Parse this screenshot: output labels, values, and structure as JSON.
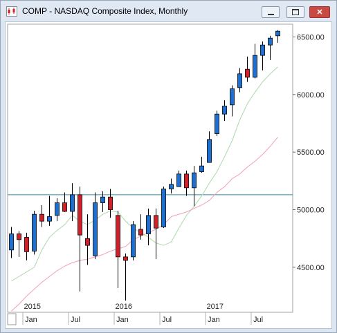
{
  "window": {
    "title": "COMP - NASDAQ Composite Index, Monthly",
    "minimize_icon": "minimize-icon",
    "maximize_icon": "maximize-icon",
    "close_icon": "close-icon",
    "app_icon": "chart-icon"
  },
  "colors": {
    "up": "#1f6fd1",
    "down": "#d0202a",
    "fast_ma": "#b5dbb3",
    "slow_ma": "#f2a6bd",
    "hline": "#2a8c96"
  },
  "chart_data": {
    "type": "candlestick",
    "ylim": [
      4150,
      6650
    ],
    "yticks": [
      4500,
      5000,
      5500,
      6000,
      6500
    ],
    "ytick_labels": [
      "4500.00",
      "5000.00",
      "5500.00",
      "6000.00",
      "6500.00"
    ],
    "year_labels": [
      {
        "label": "2015",
        "after_month": 0
      },
      {
        "label": "2016",
        "after_month": 12
      },
      {
        "label": "2017",
        "after_month": 24
      }
    ],
    "month_labels": [
      {
        "label": "Jan",
        "month": 0
      },
      {
        "label": "Jul",
        "month": 6
      },
      {
        "label": "Jan",
        "month": 12
      },
      {
        "label": "Jul",
        "month": 18
      },
      {
        "label": "Jan",
        "month": 24
      },
      {
        "label": "Jul",
        "month": 30
      }
    ],
    "horizontal_line": 5130,
    "candles": [
      {
        "date": "2014-11",
        "open": 4650,
        "high": 4850,
        "low": 4580,
        "close": 4790
      },
      {
        "date": "2014-12",
        "open": 4790,
        "high": 4815,
        "low": 4590,
        "close": 4740
      },
      {
        "date": "2015-01",
        "open": 4760,
        "high": 4800,
        "low": 4560,
        "close": 4635
      },
      {
        "date": "2015-02",
        "open": 4640,
        "high": 4990,
        "low": 4610,
        "close": 4960
      },
      {
        "date": "2015-03",
        "open": 4960,
        "high": 5040,
        "low": 4850,
        "close": 4900
      },
      {
        "date": "2015-04",
        "open": 4900,
        "high": 5120,
        "low": 4860,
        "close": 4940
      },
      {
        "date": "2015-05",
        "open": 4950,
        "high": 5100,
        "low": 4900,
        "close": 5060
      },
      {
        "date": "2015-06",
        "open": 5060,
        "high": 5150,
        "low": 4980,
        "close": 4985
      },
      {
        "date": "2015-07",
        "open": 4985,
        "high": 5230,
        "low": 4900,
        "close": 5130
      },
      {
        "date": "2015-08",
        "open": 5130,
        "high": 5200,
        "low": 4290,
        "close": 4780
      },
      {
        "date": "2015-09",
        "open": 4750,
        "high": 4960,
        "low": 4520,
        "close": 4690
      },
      {
        "date": "2015-10",
        "open": 4600,
        "high": 5150,
        "low": 4570,
        "close": 5060
      },
      {
        "date": "2015-11",
        "open": 5060,
        "high": 5160,
        "low": 4980,
        "close": 5110
      },
      {
        "date": "2015-12",
        "open": 5110,
        "high": 5180,
        "low": 4930,
        "close": 5000
      },
      {
        "date": "2016-01",
        "open": 4950,
        "high": 4990,
        "low": 4320,
        "close": 4590
      },
      {
        "date": "2016-02",
        "open": 4590,
        "high": 4620,
        "low": 4210,
        "close": 4560
      },
      {
        "date": "2016-03",
        "open": 4590,
        "high": 4900,
        "low": 4560,
        "close": 4870
      },
      {
        "date": "2016-04",
        "open": 4830,
        "high": 4960,
        "low": 4740,
        "close": 4780
      },
      {
        "date": "2016-05",
        "open": 4790,
        "high": 5010,
        "low": 4690,
        "close": 4950
      },
      {
        "date": "2016-06",
        "open": 4950,
        "high": 5010,
        "low": 4570,
        "close": 4840
      },
      {
        "date": "2016-07",
        "open": 4850,
        "high": 5200,
        "low": 4840,
        "close": 5180
      },
      {
        "date": "2016-08",
        "open": 5180,
        "high": 5270,
        "low": 5140,
        "close": 5220
      },
      {
        "date": "2016-09",
        "open": 5200,
        "high": 5340,
        "low": 5200,
        "close": 5310
      },
      {
        "date": "2016-10",
        "open": 5310,
        "high": 5340,
        "low": 5120,
        "close": 5190
      },
      {
        "date": "2016-11",
        "open": 5190,
        "high": 5380,
        "low": 5030,
        "close": 5320
      },
      {
        "date": "2016-12",
        "open": 5330,
        "high": 5460,
        "low": 5320,
        "close": 5380
      },
      {
        "date": "2017-01",
        "open": 5410,
        "high": 5680,
        "low": 5410,
        "close": 5610
      },
      {
        "date": "2017-02",
        "open": 5660,
        "high": 5860,
        "low": 5640,
        "close": 5830
      },
      {
        "date": "2017-03",
        "open": 5830,
        "high": 5950,
        "low": 5770,
        "close": 5900
      },
      {
        "date": "2017-04",
        "open": 5910,
        "high": 6080,
        "low": 5810,
        "close": 6050
      },
      {
        "date": "2017-05",
        "open": 6060,
        "high": 6230,
        "low": 6020,
        "close": 6180
      },
      {
        "date": "2017-06",
        "open": 6220,
        "high": 6330,
        "low": 6110,
        "close": 6150
      },
      {
        "date": "2017-07",
        "open": 6150,
        "high": 6440,
        "low": 6140,
        "close": 6340
      },
      {
        "date": "2017-08",
        "open": 6340,
        "high": 6460,
        "low": 6210,
        "close": 6430
      },
      {
        "date": "2017-09",
        "open": 6430,
        "high": 6510,
        "low": 6300,
        "close": 6490
      },
      {
        "date": "2017-10",
        "open": 6510,
        "high": 6560,
        "low": 6450,
        "close": 6550
      }
    ],
    "series": [
      {
        "color_key": "fast_ma",
        "values": [
          4380,
          4420,
          4460,
          4500,
          4650,
          4760,
          4820,
          4870,
          4950,
          4900,
          4870,
          4910,
          4960,
          4990,
          4980,
          4900,
          4840,
          4800,
          4760,
          4710,
          4690,
          4720,
          4840,
          4950,
          5030,
          5120,
          5230,
          5330,
          5460,
          5600,
          5780,
          5920,
          6020,
          6110,
          6180,
          6240
        ]
      },
      {
        "color_key": "slow_ma",
        "values": [
          4120,
          4180,
          4250,
          4310,
          4370,
          4420,
          4470,
          4510,
          4540,
          4560,
          4570,
          4590,
          4610,
          4640,
          4660,
          4680,
          4740,
          4770,
          4800,
          4830,
          4870,
          4940,
          4960,
          4980,
          5010,
          5040,
          5080,
          5150,
          5200,
          5270,
          5310,
          5370,
          5420,
          5480,
          5550,
          5630
        ]
      }
    ]
  }
}
